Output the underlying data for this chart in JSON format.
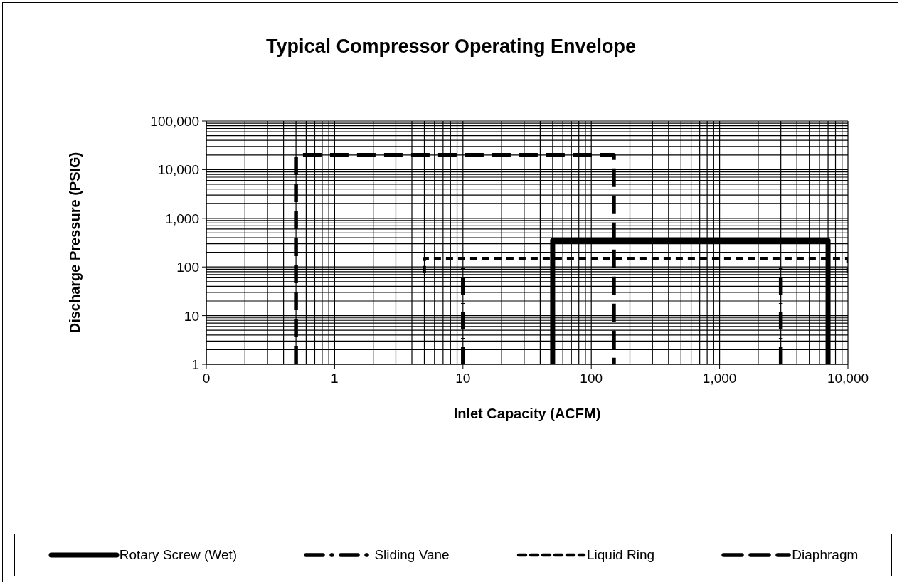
{
  "chart_data": {
    "type": "line",
    "title": "Typical Compressor Operating Envelope",
    "xlabel": "Inlet Capacity (ACFM)",
    "ylabel": "Discharge Pressure (PSIG)",
    "log": "xy",
    "grid": true,
    "legend": "bottom",
    "marker": "none",
    "xlim": [
      0.1,
      10000
    ],
    "ylim": [
      1,
      100000
    ],
    "xticks": [
      {
        "value": 0.1,
        "label": "0"
      },
      {
        "value": 0.2,
        "label": null
      },
      {
        "value": 0.3,
        "label": null
      },
      {
        "value": 0.4,
        "label": null
      },
      {
        "value": 0.5,
        "label": null
      },
      {
        "value": 0.6,
        "label": null
      },
      {
        "value": 0.7,
        "label": null
      },
      {
        "value": 0.8,
        "label": null
      },
      {
        "value": 0.9,
        "label": null
      },
      1,
      {
        "value": 2,
        "label": null
      },
      {
        "value": 3,
        "label": null
      },
      {
        "value": 4,
        "label": null
      },
      {
        "value": 5,
        "label": null
      },
      {
        "value": 6,
        "label": null
      },
      {
        "value": 7,
        "label": null
      },
      {
        "value": 8,
        "label": null
      },
      {
        "value": 9,
        "label": null
      },
      10,
      {
        "value": 20,
        "label": null
      },
      {
        "value": 30,
        "label": null
      },
      {
        "value": 40,
        "label": null
      },
      {
        "value": 50,
        "label": null
      },
      {
        "value": 60,
        "label": null
      },
      {
        "value": 70,
        "label": null
      },
      {
        "value": 80,
        "label": null
      },
      {
        "value": 90,
        "label": null
      },
      100,
      {
        "value": 200,
        "label": null
      },
      {
        "value": 300,
        "label": null
      },
      {
        "value": 400,
        "label": null
      },
      {
        "value": 500,
        "label": null
      },
      {
        "value": 600,
        "label": null
      },
      {
        "value": 700,
        "label": null
      },
      {
        "value": 800,
        "label": null
      },
      {
        "value": 900,
        "label": null
      },
      {
        "value": 1000,
        "label": "1,000"
      },
      {
        "value": 2000,
        "label": null
      },
      {
        "value": 3000,
        "label": null
      },
      {
        "value": 4000,
        "label": null
      },
      {
        "value": 5000,
        "label": null
      },
      {
        "value": 6000,
        "label": null
      },
      {
        "value": 7000,
        "label": null
      },
      {
        "value": 8000,
        "label": null
      },
      {
        "value": 9000,
        "label": null
      },
      {
        "value": 10000,
        "label": "10,000"
      }
    ],
    "yticks": [
      1,
      {
        "value": 2,
        "label": null
      },
      {
        "value": 3,
        "label": null
      },
      {
        "value": 4,
        "label": null
      },
      {
        "value": 5,
        "label": null
      },
      {
        "value": 6,
        "label": null
      },
      {
        "value": 7,
        "label": null
      },
      {
        "value": 8,
        "label": null
      },
      {
        "value": 9,
        "label": null
      },
      10,
      {
        "value": 20,
        "label": null
      },
      {
        "value": 30,
        "label": null
      },
      {
        "value": 40,
        "label": null
      },
      {
        "value": 50,
        "label": null
      },
      {
        "value": 60,
        "label": null
      },
      {
        "value": 70,
        "label": null
      },
      {
        "value": 80,
        "label": null
      },
      {
        "value": 90,
        "label": null
      },
      100,
      {
        "value": 200,
        "label": null
      },
      {
        "value": 300,
        "label": null
      },
      {
        "value": 400,
        "label": null
      },
      {
        "value": 500,
        "label": null
      },
      {
        "value": 600,
        "label": null
      },
      {
        "value": 700,
        "label": null
      },
      {
        "value": 800,
        "label": null
      },
      {
        "value": 900,
        "label": null
      },
      {
        "value": 1000,
        "label": "1,000"
      },
      {
        "value": 2000,
        "label": null
      },
      {
        "value": 3000,
        "label": null
      },
      {
        "value": 4000,
        "label": null
      },
      {
        "value": 5000,
        "label": null
      },
      {
        "value": 6000,
        "label": null
      },
      {
        "value": 7000,
        "label": null
      },
      {
        "value": 8000,
        "label": null
      },
      {
        "value": 9000,
        "label": null
      },
      {
        "value": 10000,
        "label": "10,000"
      },
      {
        "value": 20000,
        "label": null
      },
      {
        "value": 30000,
        "label": null
      },
      {
        "value": 40000,
        "label": null
      },
      {
        "value": 50000,
        "label": null
      },
      {
        "value": 60000,
        "label": null
      },
      {
        "value": 70000,
        "label": null
      },
      {
        "value": 80000,
        "label": null
      },
      {
        "value": 90000,
        "label": null
      },
      {
        "value": 100000,
        "label": "100,000"
      }
    ],
    "series": [
      {
        "name": "Rotary Screw (Wet)",
        "color": "#000000",
        "line_style": "solid",
        "x": [
          50,
          50,
          7000,
          7000
        ],
        "values": [
          1,
          350,
          350,
          1
        ]
      },
      {
        "name": "Sliding Vane",
        "color": "#000000",
        "line_style": "dashdot",
        "x": [
          10,
          10,
          null,
          3000,
          3000
        ],
        "values": [
          1,
          100,
          null,
          1,
          100
        ]
      },
      {
        "name": "Liquid Ring",
        "color": "#000000",
        "line_style": "dashed",
        "x": [
          5,
          5,
          10000,
          10000
        ],
        "values": [
          75,
          150,
          150,
          75
        ]
      },
      {
        "name": "Diaphragm",
        "color": "#000000",
        "line_style": "longdash",
        "x": [
          0.5,
          0.5,
          150,
          150
        ],
        "values": [
          1,
          20000,
          20000,
          1
        ]
      }
    ]
  }
}
